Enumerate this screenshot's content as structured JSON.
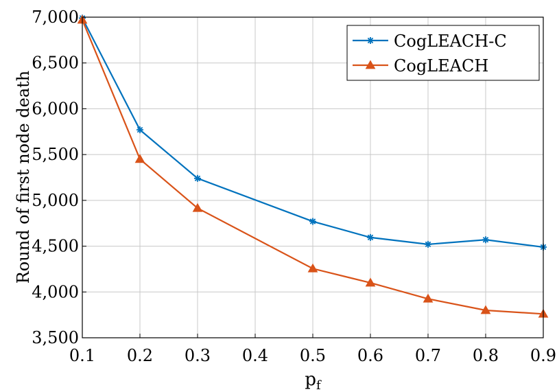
{
  "chart_data": {
    "type": "line",
    "title": "",
    "xlabel": "p",
    "xlabel_sub": "f",
    "ylabel": "Round of first node death",
    "x": [
      0.1,
      0.2,
      0.3,
      0.5,
      0.6,
      0.7,
      0.8,
      0.9
    ],
    "xlim": [
      0.1,
      0.9
    ],
    "ylim": [
      3500,
      7000
    ],
    "xticks": [
      0.1,
      0.2,
      0.3,
      0.4,
      0.5,
      0.6,
      0.7,
      0.8,
      0.9
    ],
    "xtick_labels": [
      "0.1",
      "0.2",
      "0.3",
      "0.4",
      "0.5",
      "0.6",
      "0.7",
      "0.8",
      "0.9"
    ],
    "yticks": [
      3500,
      4000,
      4500,
      5000,
      5500,
      6000,
      6500,
      7000
    ],
    "ytick_labels": [
      "3,500",
      "4,000",
      "4,500",
      "5,000",
      "5,500",
      "6,000",
      "6,500",
      "7,000"
    ],
    "grid": true,
    "legend_position": "top-right",
    "series": [
      {
        "name": "CogLEACH-C",
        "color": "#0072BD",
        "marker": "asterisk",
        "values": [
          6990,
          5770,
          5240,
          4770,
          4595,
          4520,
          4570,
          4490
        ]
      },
      {
        "name": "CogLEACH",
        "color": "#D95319",
        "marker": "triangle",
        "values": [
          6970,
          5450,
          4915,
          4255,
          4100,
          3925,
          3800,
          3760
        ]
      }
    ]
  }
}
